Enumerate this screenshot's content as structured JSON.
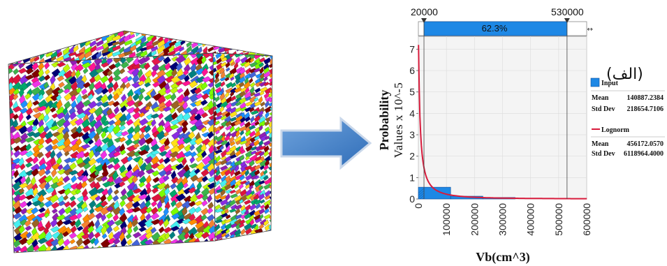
{
  "figure": {
    "annotation": "(الف)",
    "colors": {
      "bar": "#1e88e5",
      "fit": "#d81b3c",
      "arrow": "#4a86cf",
      "plot_bg": "#f4f4f4"
    }
  },
  "chart_data": {
    "type": "bar",
    "ylabel_bold": "Probability",
    "ylabel_units": "Values x 10^-5",
    "xlabel": "Vb(cm^3)",
    "xlim": [
      0,
      600000
    ],
    "ylim": [
      0,
      7.6
    ],
    "xticks": [
      "0",
      "100000",
      "200000",
      "300000",
      "400000",
      "500000",
      "600000"
    ],
    "yticks": [
      "0",
      "1",
      "2",
      "3",
      "4",
      "5",
      "6",
      "7"
    ],
    "bins": [
      {
        "start": 0,
        "end": 115000,
        "value": 0.55
      },
      {
        "start": 115000,
        "end": 230000,
        "value": 0.13
      },
      {
        "start": 230000,
        "end": 345000,
        "value": 0.07
      }
    ],
    "bracket": {
      "left": "20000",
      "right": "530000",
      "left_value": 20000,
      "right_value": 530000,
      "percent": "62.3%"
    },
    "legend": {
      "input_label": "Input",
      "input_mean_label": "Mean",
      "input_mean": "140887.2384",
      "input_std_label": "Std Dev",
      "input_std": "218654.7106",
      "fit_label": "Lognorm",
      "fit_mean_label": "Mean",
      "fit_mean": "456172.0570",
      "fit_std_label": "Std Dev",
      "fit_std": "6118964.4000"
    }
  }
}
